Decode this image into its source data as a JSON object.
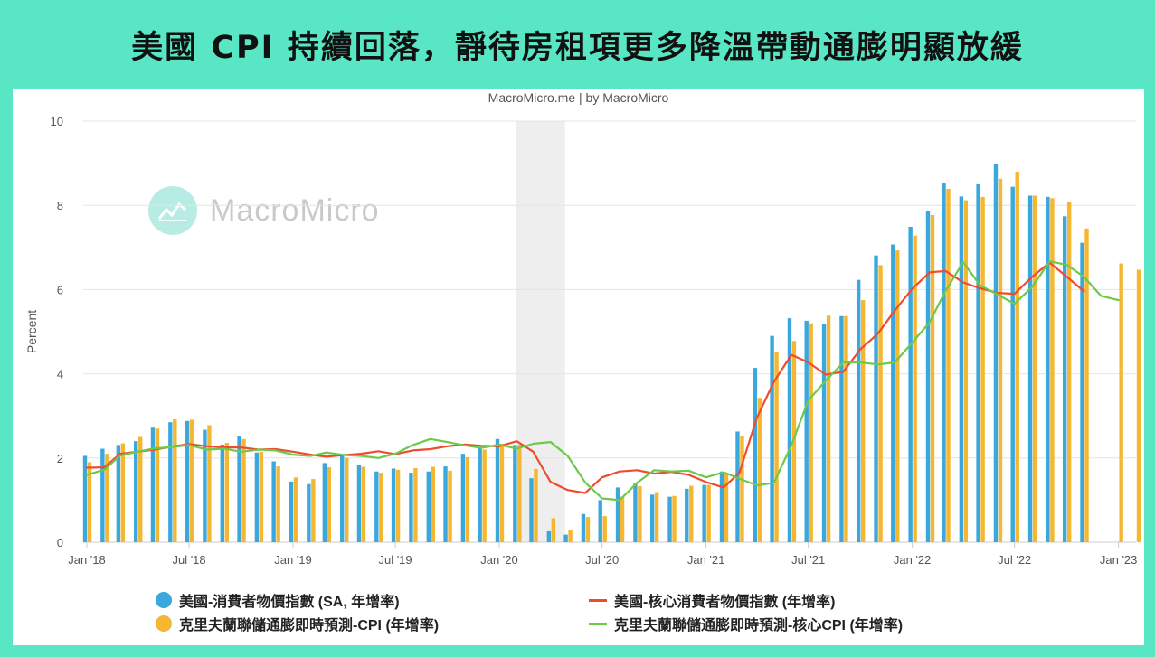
{
  "title": "美國 CPI 持續回落，靜待房租項更多降溫帶動通膨明顯放緩",
  "source": "MacroMicro.me | by MacroMicro",
  "watermark": "MacroMicro",
  "colors": {
    "background": "#58e6c4",
    "cpi": "#3aa8dc",
    "cleveland_cpi": "#f5b731",
    "core_cpi": "#ef4b2f",
    "cleveland_core": "#6cc94a",
    "recession": "#eeeeee"
  },
  "chart_data": {
    "type": "bar",
    "ylabel": "Percent",
    "ylim": [
      0,
      10
    ],
    "yticks": [
      0,
      2,
      4,
      6,
      8,
      10
    ],
    "grid": true,
    "legend_position": "bottom",
    "xtick_labels": [
      "Jan '18",
      "Jul '18",
      "Jan '19",
      "Jul '19",
      "Jan '20",
      "Jul '20",
      "Jan '21",
      "Jul '21",
      "Jan '22",
      "Jul '22",
      "Jan '23"
    ],
    "recession_band": [
      "Feb 2020",
      "Apr 2020"
    ],
    "months": [
      "2018-01",
      "2018-02",
      "2018-03",
      "2018-04",
      "2018-05",
      "2018-06",
      "2018-07",
      "2018-08",
      "2018-09",
      "2018-10",
      "2018-11",
      "2018-12",
      "2019-01",
      "2019-02",
      "2019-03",
      "2019-04",
      "2019-05",
      "2019-06",
      "2019-07",
      "2019-08",
      "2019-09",
      "2019-10",
      "2019-11",
      "2019-12",
      "2020-01",
      "2020-02",
      "2020-03",
      "2020-04",
      "2020-05",
      "2020-06",
      "2020-07",
      "2020-08",
      "2020-09",
      "2020-10",
      "2020-11",
      "2020-12",
      "2021-01",
      "2021-02",
      "2021-03",
      "2021-04",
      "2021-05",
      "2021-06",
      "2021-07",
      "2021-08",
      "2021-09",
      "2021-10",
      "2021-11",
      "2021-12",
      "2022-01",
      "2022-02",
      "2022-03",
      "2022-04",
      "2022-05",
      "2022-06",
      "2022-07",
      "2022-08",
      "2022-09",
      "2022-10",
      "2022-11",
      "2022-12",
      "2023-01",
      "2023-02"
    ],
    "series": [
      {
        "name": "美國-消費者物價指數 (SA, 年增率)",
        "kind": "bar",
        "values": [
          2.05,
          2.22,
          2.31,
          2.4,
          2.72,
          2.85,
          2.88,
          2.67,
          2.32,
          2.51,
          2.13,
          1.92,
          1.44,
          1.38,
          1.88,
          2.08,
          1.84,
          1.68,
          1.75,
          1.65,
          1.68,
          1.8,
          2.1,
          2.26,
          2.45,
          2.31,
          1.52,
          0.26,
          0.18,
          0.67,
          1.0,
          1.3,
          1.39,
          1.13,
          1.08,
          1.27,
          1.36,
          1.68,
          2.63,
          4.14,
          4.9,
          5.32,
          5.26,
          5.19,
          5.37,
          6.23,
          6.81,
          7.07,
          7.49,
          7.87,
          8.52,
          8.21,
          8.5,
          8.99,
          8.44,
          8.23,
          8.2,
          7.74,
          7.11,
          null,
          null,
          null
        ]
      },
      {
        "name": "克里夫蘭聯儲通膨即時預測-CPI (年增率)",
        "kind": "bar",
        "values": [
          1.9,
          2.1,
          2.35,
          2.5,
          2.7,
          2.92,
          2.91,
          2.78,
          2.36,
          2.45,
          2.15,
          1.8,
          1.54,
          1.5,
          1.78,
          2.0,
          1.79,
          1.65,
          1.72,
          1.76,
          1.79,
          1.7,
          2.02,
          2.2,
          2.34,
          2.32,
          1.74,
          0.57,
          0.29,
          0.6,
          0.62,
          1.08,
          1.33,
          1.19,
          1.1,
          1.34,
          1.36,
          1.65,
          2.52,
          3.43,
          4.53,
          4.78,
          5.2,
          5.38,
          5.37,
          5.75,
          6.58,
          6.93,
          7.28,
          7.77,
          8.39,
          8.12,
          8.2,
          8.63,
          8.8,
          8.23,
          8.17,
          8.07,
          7.45,
          null,
          6.62,
          6.47
        ]
      },
      {
        "name": "美國-核心消費者物價指數 (年增率)",
        "kind": "line",
        "values": [
          1.77,
          1.78,
          2.1,
          2.15,
          2.2,
          2.27,
          2.33,
          2.28,
          2.25,
          2.25,
          2.2,
          2.21,
          2.15,
          2.08,
          2.03,
          2.07,
          2.1,
          2.16,
          2.09,
          2.18,
          2.21,
          2.28,
          2.32,
          2.29,
          2.28,
          2.4,
          2.15,
          1.43,
          1.24,
          1.17,
          1.54,
          1.68,
          1.71,
          1.63,
          1.67,
          1.6,
          1.43,
          1.3,
          1.65,
          2.96,
          3.81,
          4.45,
          4.27,
          3.98,
          4.05,
          4.58,
          4.95,
          5.5,
          6.02,
          6.41,
          6.44,
          6.17,
          6.03,
          5.92,
          5.9,
          6.3,
          6.64,
          6.31,
          5.96,
          null,
          null,
          null
        ]
      },
      {
        "name": "克里夫蘭聯儲通膨即時預測-核心CPI (年增率)",
        "kind": "line",
        "values": [
          1.6,
          1.72,
          2.06,
          2.15,
          2.23,
          2.26,
          2.31,
          2.2,
          2.22,
          2.15,
          2.2,
          2.18,
          2.08,
          2.05,
          2.13,
          2.07,
          2.05,
          2.0,
          2.1,
          2.31,
          2.45,
          2.38,
          2.3,
          2.24,
          2.32,
          2.22,
          2.34,
          2.38,
          2.05,
          1.42,
          1.04,
          1.0,
          1.41,
          1.71,
          1.68,
          1.7,
          1.54,
          1.66,
          1.51,
          1.35,
          1.41,
          2.3,
          3.37,
          3.84,
          4.27,
          4.27,
          4.22,
          4.27,
          4.74,
          5.23,
          5.97,
          6.65,
          6.1,
          5.88,
          5.66,
          6.06,
          6.67,
          6.59,
          6.3,
          5.85,
          5.75,
          null
        ]
      }
    ]
  }
}
